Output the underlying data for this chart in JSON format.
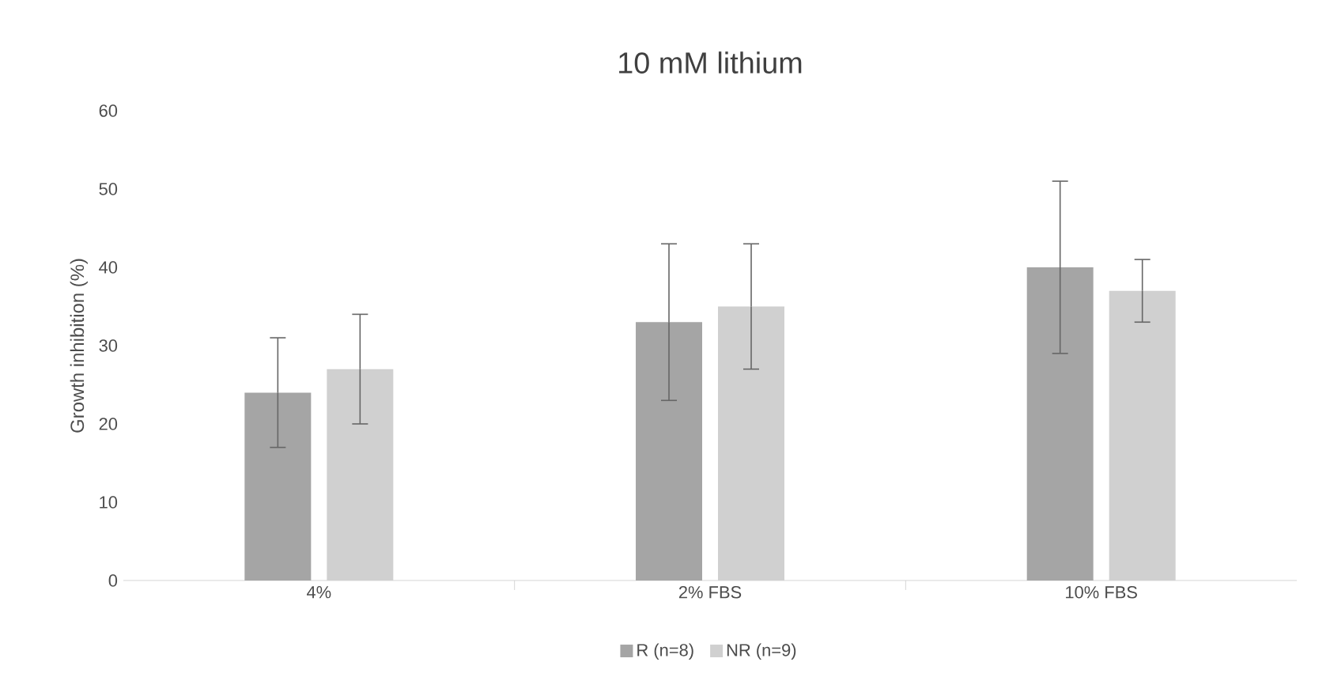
{
  "chart_data": {
    "type": "bar",
    "title": "10 mM lithium",
    "ylabel": "Growth inhibition (%)",
    "categories": [
      "4%",
      "2% FBS",
      "10% FBS"
    ],
    "series": [
      {
        "name": "R (n=8)",
        "color": "#a5a5a5",
        "values": [
          24,
          33,
          40
        ],
        "errors": [
          7,
          10,
          11
        ]
      },
      {
        "name": "NR (n=9)",
        "color": "#d0d0d0",
        "values": [
          27,
          35,
          37
        ],
        "errors": [
          7,
          8,
          4
        ]
      }
    ],
    "ylim": [
      0,
      60
    ],
    "yticks": [
      0,
      10,
      20,
      30,
      40,
      50,
      60
    ],
    "legend": "bottom"
  }
}
